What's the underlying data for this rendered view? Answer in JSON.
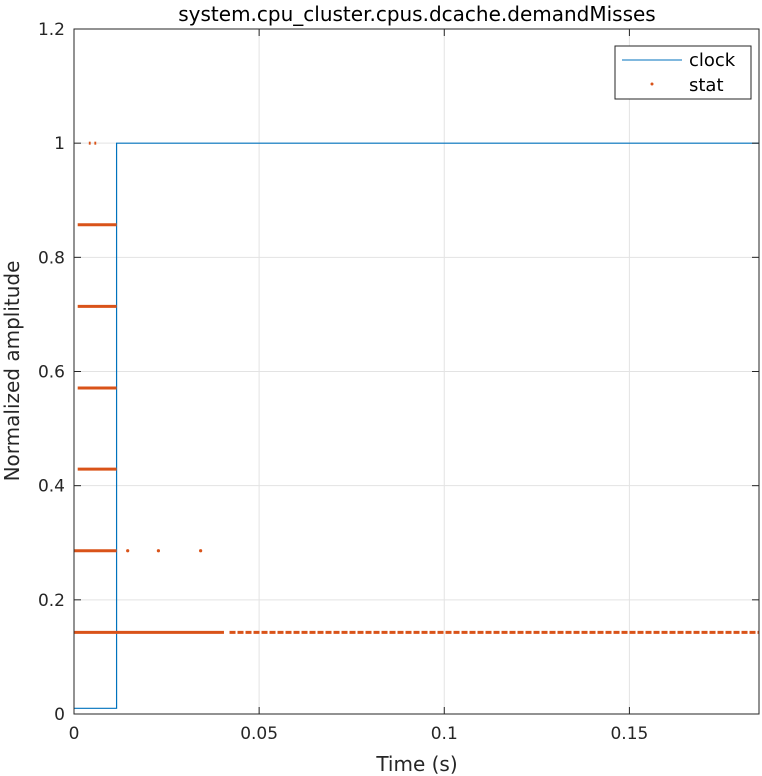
{
  "chart_data": {
    "type": "line",
    "title": "system.cpu_cluster.cpus.dcache.demandMisses",
    "xlabel": "Time (s)",
    "ylabel": "Normalized amplitude",
    "xlim": [
      0,
      0.185
    ],
    "ylim": [
      0,
      1.2
    ],
    "xticks": [
      0,
      0.05,
      0.1,
      0.15
    ],
    "xtick_labels": [
      "0",
      "0.05",
      "0.1",
      "0.15"
    ],
    "yticks": [
      0,
      0.2,
      0.4,
      0.6,
      0.8,
      1.0,
      1.2
    ],
    "ytick_labels": [
      "0",
      "0.2",
      "0.4",
      "0.6",
      "0.8",
      "1",
      "1.2"
    ],
    "grid": true,
    "legend_position": "top-right",
    "series": [
      {
        "name": "clock",
        "style": "line",
        "color": "#0072BD",
        "x": [
          0,
          0.0115,
          0.0115,
          0.185
        ],
        "y": [
          0.01,
          0.01,
          1.0,
          1.0
        ]
      },
      {
        "name": "stat",
        "style": "markers",
        "color": "#D95319",
        "levels": [
          {
            "y": 1.0,
            "segments": [
              [
                0.004,
                0.0045
              ],
              [
                0.0055,
                0.006
              ]
            ]
          },
          {
            "y": 0.857,
            "segments": [
              [
                0.001,
                0.0115
              ]
            ]
          },
          {
            "y": 0.714,
            "segments": [
              [
                0.001,
                0.0115
              ]
            ]
          },
          {
            "y": 0.571,
            "segments": [
              [
                0.001,
                0.0115
              ]
            ]
          },
          {
            "y": 0.429,
            "segments": [
              [
                0.001,
                0.0115
              ]
            ]
          },
          {
            "y": 0.286,
            "segments": [
              [
                0.0,
                0.0115
              ],
              [
                0.0145,
                0.0145
              ],
              [
                0.0228,
                0.0228
              ],
              [
                0.0342,
                0.0342
              ]
            ]
          },
          {
            "y": 0.143,
            "segments": [
              [
                0.0,
                0.0405
              ],
              [
                0.042,
                0.185
              ]
            ]
          }
        ]
      }
    ]
  }
}
